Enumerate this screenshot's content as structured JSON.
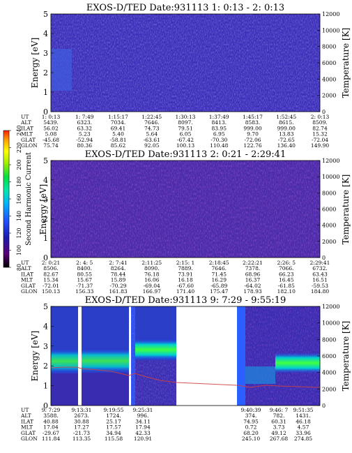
{
  "chart_data": [
    {
      "type": "heatmap",
      "title": "EXOS-D/TED   Date:931113  1: 0:13 - 2: 0:13",
      "ylabel": "Energy [eV]",
      "y2label": "Temperature [K]",
      "ylim": [
        0,
        5
      ],
      "y2lim": [
        0,
        12000
      ],
      "yticks": [
        "0",
        "1",
        "2",
        "3",
        "4",
        "5"
      ],
      "y2ticks": [
        "0",
        "2000",
        "4000",
        "6000",
        "8000",
        "10000",
        "12000"
      ],
      "ephemeris_labels": [
        "UT",
        "ALT",
        "ILAT",
        "MLT",
        "GLAT",
        "GLON"
      ],
      "columns": [
        {
          "UT": "1: 0:13",
          "ALT": "5439.",
          "ILAT": "56.02",
          "MLT": "5.08",
          "GLAT": "-45.68",
          "GLON": "75.74"
        },
        {
          "UT": "1: 7:49",
          "ALT": "6323.",
          "ILAT": "63.32",
          "MLT": "5.23",
          "GLAT": "-52.94",
          "GLON": "80.36"
        },
        {
          "UT": "1:15:17",
          "ALT": "7034.",
          "ILAT": "69.41",
          "MLT": "5.40",
          "GLAT": "-58.81",
          "GLON": "85.62"
        },
        {
          "UT": "1:22:45",
          "ALT": "7646.",
          "ILAT": "74.73",
          "MLT": "5.64",
          "GLAT": "-63.61",
          "GLON": "92.05"
        },
        {
          "UT": "1:30:13",
          "ALT": "8097.",
          "ILAT": "79.51",
          "MLT": "6.05",
          "GLAT": "-67.42",
          "GLON": "100.13"
        },
        {
          "UT": "1:37:49",
          "ALT": "8413.",
          "ILAT": "83.95",
          "MLT": "6.95",
          "GLAT": "-70.30",
          "GLON": "110.48"
        },
        {
          "UT": "1:45:17",
          "ALT": "8583.",
          "ILAT": "999.00",
          "MLT": "9.70",
          "GLAT": "-72.06",
          "GLON": "122.76"
        },
        {
          "UT": "1:52:45",
          "ALT": "8615.",
          "ILAT": "999.00",
          "MLT": "13.83",
          "GLAT": "-72.65",
          "GLON": "136.40"
        },
        {
          "UT": "2: 0:13",
          "ALT": "8509.",
          "ILAT": "82.74",
          "MLT": "15.32",
          "GLAT": "-72.04",
          "GLON": "149.90"
        }
      ]
    },
    {
      "type": "heatmap",
      "title": "EXOS-D/TED   Date:931113  2: 0:21 - 2:29:41",
      "ylabel": "Energy [eV]",
      "y2label": "Temperature [K]",
      "ylim": [
        0,
        5
      ],
      "y2lim": [
        0,
        12000
      ],
      "yticks": [
        "0",
        "1",
        "2",
        "3",
        "4",
        "5"
      ],
      "y2ticks": [
        "0",
        "2000",
        "4000",
        "6000",
        "8000",
        "10000",
        "12000"
      ],
      "ephemeris_labels": [
        "UT",
        "ALT",
        "ILAT",
        "MLT",
        "GLAT",
        "GLON"
      ],
      "columns": [
        {
          "UT": "2: 0:21",
          "ALT": "8506.",
          "ILAT": "82.67",
          "MLT": "15.34",
          "GLAT": "-72.01",
          "GLON": "150.13"
        },
        {
          "UT": "2: 4: 5",
          "ALT": "8400.",
          "ILAT": "80.55",
          "MLT": "15.67",
          "GLAT": "-71.37",
          "GLON": "156.33"
        },
        {
          "UT": "2: 7:41",
          "ALT": "8264.",
          "ILAT": "78.44",
          "MLT": "15.89",
          "GLAT": "-70.29",
          "GLON": "161.83"
        },
        {
          "UT": "2:11:25",
          "ALT": "8090.",
          "ILAT": "76.18",
          "MLT": "16.06",
          "GLAT": "-69.04",
          "GLON": "166.97"
        },
        {
          "UT": "2:15: 1",
          "ALT": "7889.",
          "ILAT": "73.91",
          "MLT": "16.18",
          "GLAT": "-67.60",
          "GLON": "171.40"
        },
        {
          "UT": "2:18:45",
          "ALT": "7646.",
          "ILAT": "71.45",
          "MLT": "16.29",
          "GLAT": "-65.89",
          "GLON": "175.47"
        },
        {
          "UT": "2:22:21",
          "ALT": "7378.",
          "ILAT": "68.96",
          "MLT": "16.37",
          "GLAT": "-64.02",
          "GLON": "178.93"
        },
        {
          "UT": "2:26: 5",
          "ALT": "7066.",
          "ILAT": "66.23",
          "MLT": "16.45",
          "GLAT": "-61.85",
          "GLON": "182.10"
        },
        {
          "UT": "2:29:41",
          "ALT": "6732.",
          "ILAT": "63.43",
          "MLT": "16.51",
          "GLAT": "-59.53",
          "GLON": "184.80"
        }
      ]
    },
    {
      "type": "heatmap",
      "title": "EXOS-D/TED   Date:931113  9: 7:29 - 9:55:19",
      "ylabel": "Energy [eV]",
      "y2label": "Temperature [K]",
      "ylim": [
        0,
        5
      ],
      "y2lim": [
        0,
        12000
      ],
      "yticks": [
        "0",
        "1",
        "2",
        "3",
        "4",
        "5"
      ],
      "y2ticks": [
        "0",
        "2000",
        "4000",
        "6000",
        "8000",
        "10000",
        "12000"
      ],
      "ephemeris_labels": [
        "UT",
        "ALT",
        "ILAT",
        "MLT",
        "GLAT",
        "GLON"
      ],
      "columns": [
        {
          "UT": "9: 7:29",
          "ALT": "3588.",
          "ILAT": "40.88",
          "MLT": "17.04",
          "GLAT": "-29.67",
          "GLON": "111.84"
        },
        {
          "UT": "9:13:31",
          "ALT": "2673.",
          "ILAT": "30.88",
          "MLT": "17.27",
          "GLAT": "-21.73",
          "GLON": "113.35"
        },
        {
          "UT": "9:19:55",
          "ALT": "1724.",
          "ILAT": "25.17",
          "MLT": "17.57",
          "GLAT": "34.94",
          "GLON": "115.58"
        },
        {
          "UT": "9:25:31",
          "ALT": "996.",
          "ILAT": "34.11",
          "MLT": "17.94",
          "GLAT": "42.33",
          "GLON": "120.91"
        },
        {
          "UT": "9:40:39",
          "ALT": "374.",
          "ILAT": "74.95",
          "MLT": "0.72",
          "GLAT": "68.20",
          "GLON": "245.10"
        },
        {
          "UT": "9:46: 7",
          "ALT": "782.",
          "ILAT": "60.31",
          "MLT": "3.73",
          "GLAT": "49.12",
          "GLON": "267.68"
        },
        {
          "UT": "9:51:35",
          "ALT": "1431.",
          "ILAT": "46.18",
          "MLT": "4.57",
          "GLAT": "33.96",
          "GLON": "274.85"
        }
      ]
    }
  ],
  "colorbar": {
    "label": "Second Harmonic Current",
    "ticks": [
      "80",
      "100",
      "120",
      "140",
      "160",
      "180",
      "200",
      "220",
      "240"
    ],
    "range": [
      80,
      240
    ],
    "colors": [
      "#000000",
      "#5a0077",
      "#1c1cb0",
      "#2050ff",
      "#00b0ff",
      "#00e6b0",
      "#00e040",
      "#a0f000",
      "#ffff00",
      "#ffa000",
      "#ff2000"
    ]
  }
}
